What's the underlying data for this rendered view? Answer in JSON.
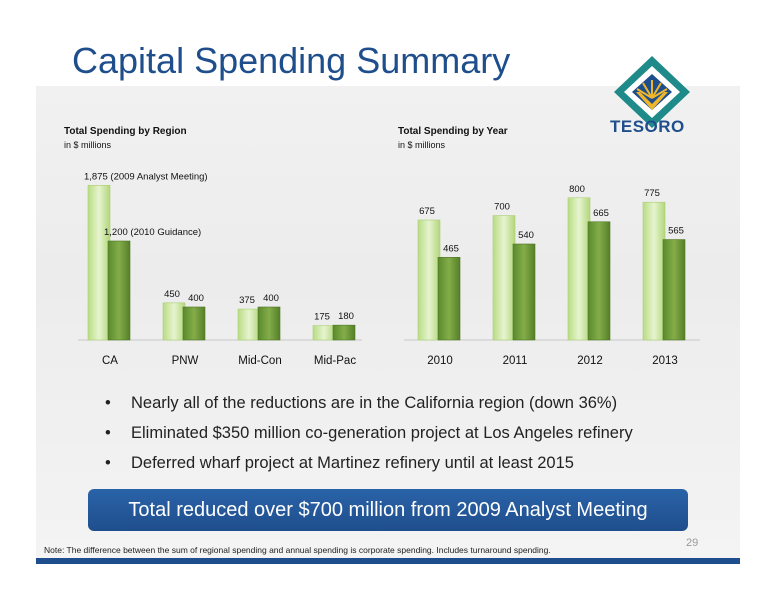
{
  "title": "Capital Spending Summary",
  "logo": {
    "text": "TESORO",
    "colors": {
      "teal": "#1e8a8a",
      "navy": "#1f4e8c",
      "gold": "#f0b62a"
    }
  },
  "colors": {
    "light_bar": "#cfe8a4",
    "dark_bar": "#6f9a3a",
    "title": "#1f4e8c"
  },
  "chart_data": [
    {
      "type": "bar",
      "title": "Total Spending by Region",
      "subtitle": "in $ millions",
      "categories": [
        "CA",
        "PNW",
        "Mid-Con",
        "Mid-Pac"
      ],
      "series": [
        {
          "name": "2009 Analyst Meeting",
          "values": [
            1875,
            450,
            375,
            175
          ]
        },
        {
          "name": "2010 Guidance",
          "values": [
            1200,
            400,
            400,
            180
          ]
        }
      ],
      "labels": {
        "light": [
          "1,875 (2009 Analyst Meeting)",
          "450",
          "375",
          "175"
        ],
        "dark": [
          "1,200  (2010 Guidance)",
          "400",
          "400",
          "180"
        ]
      },
      "ylim": [
        0,
        2000
      ]
    },
    {
      "type": "bar",
      "title": "Total Spending by Year",
      "subtitle": "in $ millions",
      "categories": [
        "2010",
        "2011",
        "2012",
        "2013"
      ],
      "series": [
        {
          "values": [
            675,
            700,
            800,
            775
          ]
        },
        {
          "values": [
            465,
            540,
            665,
            565
          ]
        }
      ],
      "ylim": [
        0,
        900
      ]
    }
  ],
  "bullets": [
    "Nearly all of the reductions are in the California region (down 36%)",
    "Eliminated $350 million co-generation project at Los Angeles refinery",
    "Deferred wharf project at Martinez refinery until at least 2015"
  ],
  "summary": "Total reduced over $700 million from 2009 Analyst Meeting",
  "page_number": "29",
  "note": "Note:  The difference between the sum of regional spending and annual spending is corporate spending.  Includes turnaround spending."
}
